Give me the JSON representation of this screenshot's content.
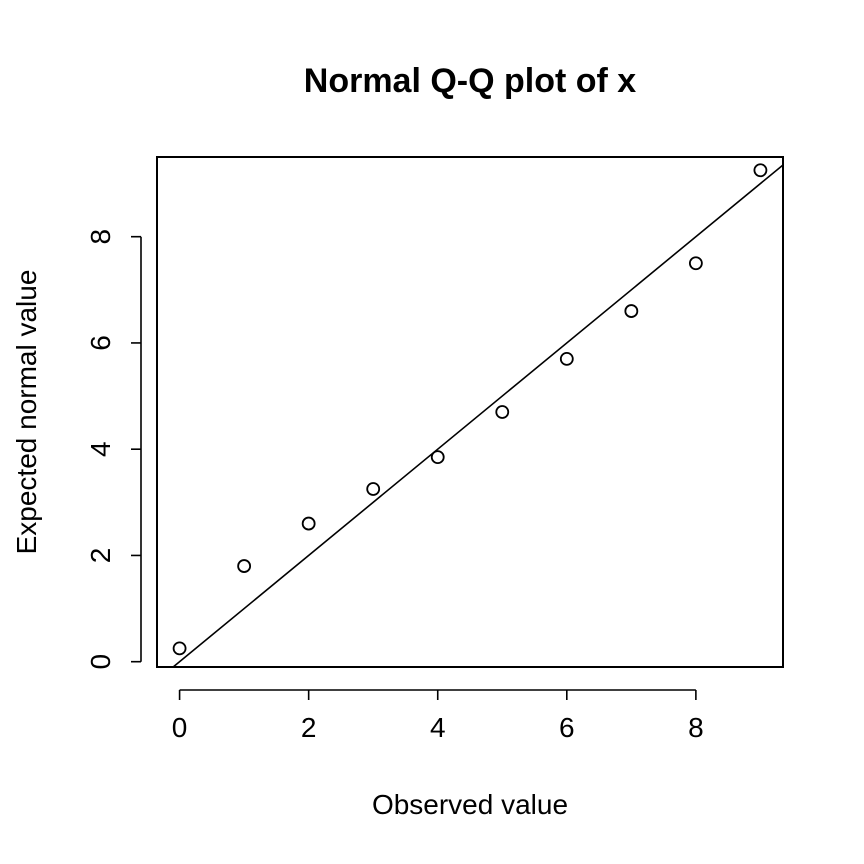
{
  "chart_data": {
    "type": "scatter",
    "title": "Normal Q-Q plot of x",
    "xlabel": "Observed value",
    "ylabel": "Expected normal value",
    "xlim": [
      -0.35,
      9.35
    ],
    "ylim": [
      -0.1,
      9.5
    ],
    "x_ticks": [
      0,
      2,
      4,
      6,
      8
    ],
    "y_ticks": [
      0,
      2,
      4,
      6,
      8
    ],
    "points": {
      "x": [
        0,
        1,
        2,
        3,
        4,
        5,
        6,
        7,
        8,
        9
      ],
      "y": [
        0.25,
        1.8,
        2.6,
        3.25,
        3.85,
        4.7,
        5.7,
        6.6,
        7.5,
        9.25
      ]
    },
    "reference_line": {
      "slope": 1.0,
      "intercept": 0.0
    },
    "grid": false,
    "legend": "none",
    "colors": {
      "points": "#000000",
      "line": "#000000",
      "axes": "#000000",
      "background": "#ffffff"
    }
  }
}
